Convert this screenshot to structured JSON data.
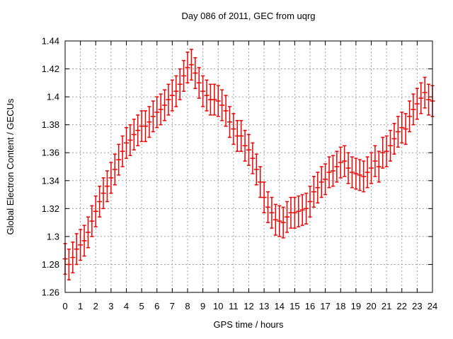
{
  "title": "Day 086 of 2011, GEC from uqrg",
  "colors": {
    "series": "#ee0000",
    "grid": "#9c9c9c",
    "axis": "#000000",
    "background": "#ffffff"
  },
  "chart_data": {
    "type": "scatter",
    "subtype": "errorbars",
    "title": "Day 086 of 2011, GEC from uqrg",
    "xlabel": "GPS time / hours",
    "ylabel": "Global Electron Content / GECUs",
    "xlim": [
      0,
      24
    ],
    "ylim": [
      1.26,
      1.44
    ],
    "grid": "on",
    "legend": "none",
    "xticks": [
      0,
      1,
      2,
      3,
      4,
      5,
      6,
      7,
      8,
      9,
      10,
      11,
      12,
      13,
      14,
      15,
      16,
      17,
      18,
      19,
      20,
      21,
      22,
      23,
      24
    ],
    "xtick_labels": [
      "0",
      "1",
      "2",
      "3",
      "4",
      "5",
      "6",
      "7",
      "8",
      "9",
      "10",
      "11",
      "12",
      "13",
      "14",
      "15",
      "16",
      "17",
      "18",
      "19",
      "20",
      "21",
      "22",
      "23",
      "24"
    ],
    "yticks": [
      1.26,
      1.28,
      1.3,
      1.32,
      1.34,
      1.36,
      1.38,
      1.4,
      1.42,
      1.44
    ],
    "ytick_labels": [
      "1.26",
      "1.28",
      "1.3",
      "1.32",
      "1.34",
      "1.36",
      "1.38",
      "1.4",
      "1.42",
      "1.44"
    ],
    "yerr": 0.011,
    "x": [
      0,
      0.25,
      0.5,
      0.75,
      1,
      1.25,
      1.5,
      1.75,
      2,
      2.25,
      2.5,
      2.75,
      3,
      3.25,
      3.5,
      3.75,
      4,
      4.25,
      4.5,
      4.75,
      5,
      5.25,
      5.5,
      5.75,
      6,
      6.25,
      6.5,
      6.75,
      7,
      7.25,
      7.5,
      7.75,
      8,
      8.25,
      8.5,
      8.75,
      9,
      9.25,
      9.5,
      9.75,
      10,
      10.25,
      10.5,
      10.75,
      11,
      11.25,
      11.5,
      11.75,
      12,
      12.25,
      12.5,
      12.75,
      13,
      13.25,
      13.5,
      13.75,
      14,
      14.25,
      14.5,
      14.75,
      15,
      15.25,
      15.5,
      15.75,
      16,
      16.25,
      16.5,
      16.75,
      17,
      17.25,
      17.5,
      17.75,
      18,
      18.25,
      18.5,
      18.75,
      19,
      19.25,
      19.5,
      19.75,
      20,
      20.25,
      20.5,
      20.75,
      21,
      21.25,
      21.5,
      21.75,
      22,
      22.25,
      22.5,
      22.75,
      23,
      23.25,
      23.5,
      23.75,
      24
    ],
    "y": [
      1.284,
      1.28,
      1.285,
      1.291,
      1.294,
      1.297,
      1.303,
      1.311,
      1.318,
      1.325,
      1.331,
      1.336,
      1.342,
      1.348,
      1.355,
      1.361,
      1.367,
      1.369,
      1.373,
      1.376,
      1.379,
      1.379,
      1.382,
      1.386,
      1.389,
      1.391,
      1.394,
      1.398,
      1.401,
      1.404,
      1.409,
      1.415,
      1.421,
      1.423,
      1.417,
      1.41,
      1.404,
      1.401,
      1.398,
      1.398,
      1.397,
      1.394,
      1.39,
      1.382,
      1.377,
      1.372,
      1.372,
      1.365,
      1.362,
      1.356,
      1.348,
      1.339,
      1.328,
      1.321,
      1.317,
      1.312,
      1.311,
      1.31,
      1.314,
      1.317,
      1.317,
      1.318,
      1.319,
      1.32,
      1.325,
      1.332,
      1.335,
      1.339,
      1.341,
      1.346,
      1.347,
      1.35,
      1.353,
      1.354,
      1.349,
      1.346,
      1.345,
      1.344,
      1.343,
      1.346,
      1.349,
      1.354,
      1.35,
      1.36,
      1.361,
      1.365,
      1.37,
      1.375,
      1.378,
      1.377,
      1.386,
      1.391,
      1.395,
      1.399,
      1.403,
      1.398,
      1.397
    ]
  }
}
